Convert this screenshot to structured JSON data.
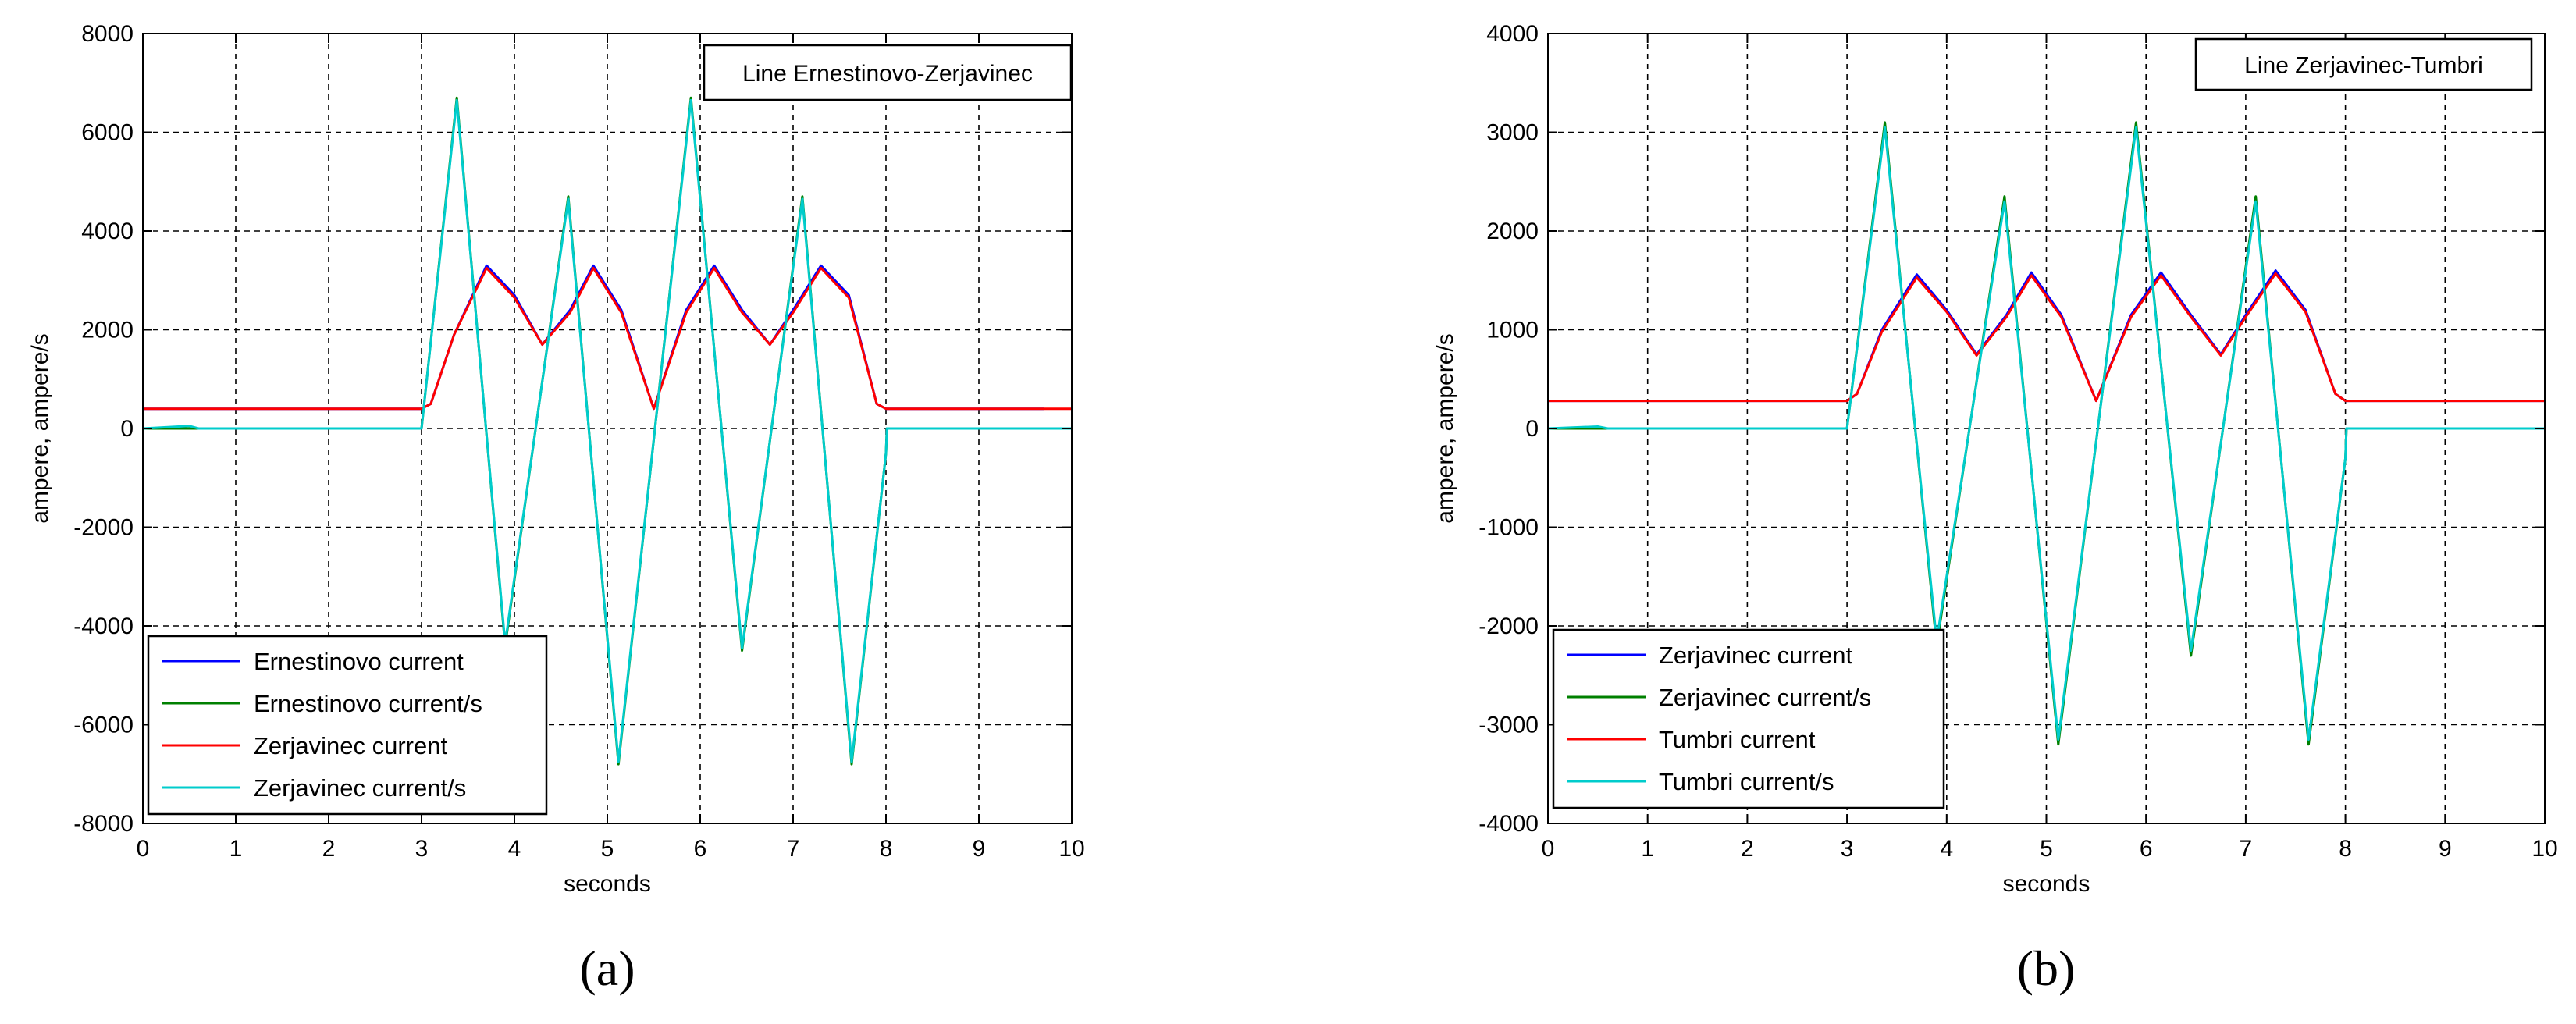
{
  "chart_data": [
    {
      "type": "line",
      "panel_label": "(a)",
      "title": "Line Ernestinovo-Zerjavinec",
      "xlabel": "seconds",
      "ylabel": "ampere, ampere/s",
      "xlim": [
        0,
        10
      ],
      "ylim": [
        -8000,
        8000
      ],
      "xticks": [
        "0",
        "1",
        "2",
        "3",
        "4",
        "5",
        "6",
        "7",
        "8",
        "9",
        "10"
      ],
      "yticks": [
        "-8000",
        "-6000",
        "-4000",
        "-2000",
        "0",
        "2000",
        "4000",
        "6000",
        "8000"
      ],
      "grid": true,
      "legend_position": "bottom-left",
      "series": [
        {
          "name": "Ernestinovo current",
          "color": "#0000ff",
          "x": [
            0,
            3,
            3.1,
            3.35,
            3.7,
            4.0,
            4.3,
            4.6,
            4.85,
            5.15,
            5.5,
            5.85,
            6.15,
            6.45,
            6.75,
            7.0,
            7.3,
            7.6,
            7.9,
            8,
            9.7
          ],
          "y": [
            400,
            400,
            500,
            1900,
            3300,
            2700,
            1700,
            2400,
            3300,
            2400,
            400,
            2400,
            3300,
            2400,
            1700,
            2400,
            3300,
            2700,
            500,
            400,
            400
          ]
        },
        {
          "name": "Ernestinovo current/s",
          "color": "#008000",
          "x": [
            0,
            0.5,
            0.6,
            3,
            3.38,
            3.9,
            4.58,
            5.12,
            5.9,
            6.45,
            7.1,
            7.63,
            8.0,
            8.01,
            10
          ],
          "y": [
            0,
            0,
            0,
            0,
            6700,
            -4400,
            4700,
            -6800,
            6700,
            -4500,
            4700,
            -6800,
            -500,
            0,
            0
          ]
        },
        {
          "name": "Zerjavinec current",
          "color": "#ff0000",
          "x": [
            0,
            3,
            3.1,
            3.35,
            3.7,
            4.0,
            4.3,
            4.6,
            4.85,
            5.15,
            5.5,
            5.85,
            6.15,
            6.45,
            6.75,
            7.0,
            7.3,
            7.6,
            7.9,
            8,
            10
          ],
          "y": [
            400,
            400,
            500,
            1900,
            3250,
            2650,
            1700,
            2350,
            3250,
            2350,
            400,
            2350,
            3250,
            2350,
            1700,
            2350,
            3250,
            2650,
            500,
            400,
            400
          ]
        },
        {
          "name": "Zerjavinec current/s",
          "color": "#00cccc",
          "x": [
            0,
            0.5,
            0.6,
            3,
            3.38,
            3.9,
            4.58,
            5.12,
            5.9,
            6.45,
            7.1,
            7.63,
            8.0,
            8.01,
            10
          ],
          "y": [
            0,
            50,
            0,
            0,
            6650,
            -4350,
            4650,
            -6750,
            6650,
            -4450,
            4650,
            -6750,
            -500,
            0,
            0
          ]
        }
      ]
    },
    {
      "type": "line",
      "panel_label": "(b)",
      "title": "Line Zerjavinec-Tumbri",
      "xlabel": "seconds",
      "ylabel": "ampere, ampere/s",
      "xlim": [
        0,
        10
      ],
      "ylim": [
        -4000,
        4000
      ],
      "xticks": [
        "0",
        "1",
        "2",
        "3",
        "4",
        "5",
        "6",
        "7",
        "8",
        "9",
        "10"
      ],
      "yticks": [
        "-4000",
        "-3000",
        "-2000",
        "-1000",
        "0",
        "1000",
        "2000",
        "3000",
        "4000"
      ],
      "grid": true,
      "legend_position": "bottom-left",
      "series": [
        {
          "name": "Zerjavinec current",
          "color": "#0000ff",
          "x": [
            0,
            3,
            3.1,
            3.35,
            3.7,
            4.0,
            4.3,
            4.6,
            4.85,
            5.15,
            5.5,
            5.85,
            6.15,
            6.45,
            6.75,
            7.0,
            7.3,
            7.6,
            7.9,
            8,
            10
          ],
          "y": [
            280,
            280,
            350,
            1000,
            1560,
            1200,
            750,
            1150,
            1580,
            1150,
            280,
            1150,
            1580,
            1150,
            750,
            1150,
            1600,
            1200,
            350,
            280,
            280
          ]
        },
        {
          "name": "Zerjavinec current/s",
          "color": "#008000",
          "x": [
            0,
            0.5,
            0.6,
            3,
            3.38,
            3.9,
            4.58,
            5.12,
            5.9,
            6.45,
            7.1,
            7.63,
            8.0,
            8.01,
            10
          ],
          "y": [
            0,
            0,
            0,
            0,
            3100,
            -2200,
            2350,
            -3200,
            3100,
            -2300,
            2350,
            -3200,
            -300,
            0,
            0
          ]
        },
        {
          "name": "Tumbri current",
          "color": "#ff0000",
          "x": [
            0,
            3,
            3.1,
            3.35,
            3.7,
            4.0,
            4.3,
            4.6,
            4.85,
            5.15,
            5.5,
            5.85,
            6.15,
            6.45,
            6.75,
            7.0,
            7.3,
            7.6,
            7.9,
            8,
            10
          ],
          "y": [
            280,
            280,
            350,
            980,
            1530,
            1180,
            740,
            1130,
            1550,
            1130,
            280,
            1130,
            1550,
            1130,
            740,
            1130,
            1570,
            1180,
            350,
            280,
            280
          ]
        },
        {
          "name": "Tumbri current/s",
          "color": "#00cccc",
          "x": [
            0,
            0.5,
            0.6,
            3,
            3.38,
            3.9,
            4.58,
            5.12,
            5.9,
            6.45,
            7.1,
            7.63,
            8.0,
            8.01,
            10
          ],
          "y": [
            0,
            20,
            0,
            0,
            3050,
            -2150,
            2300,
            -3150,
            3050,
            -2250,
            2300,
            -3150,
            -300,
            0,
            0
          ]
        }
      ]
    }
  ]
}
